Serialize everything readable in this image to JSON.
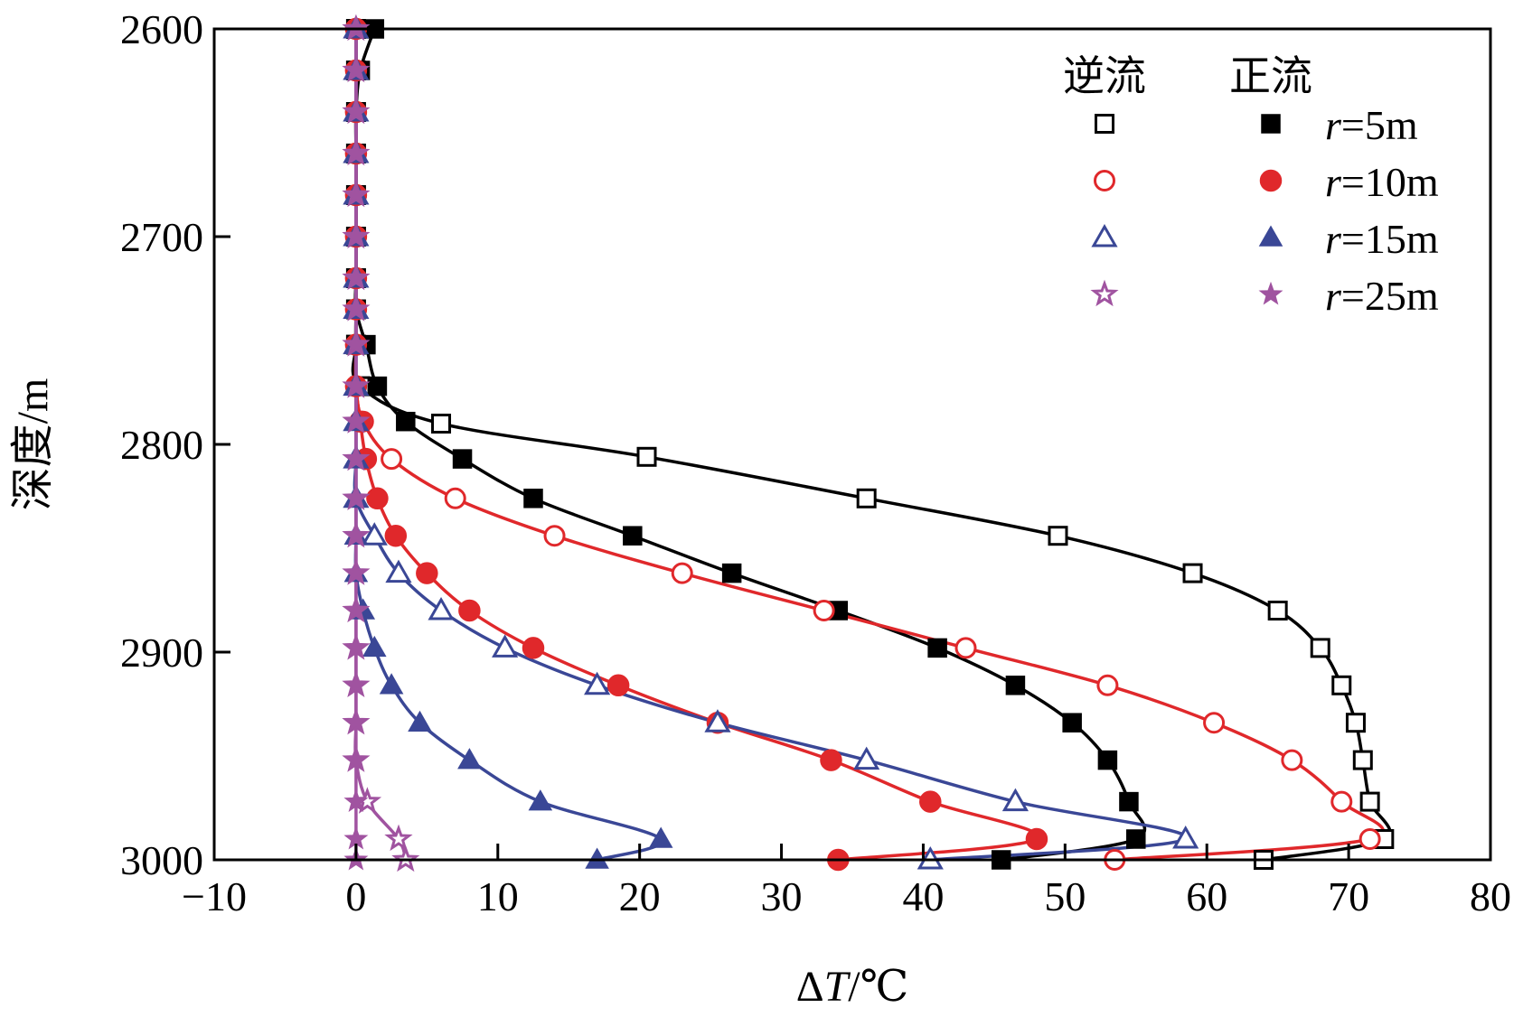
{
  "chart_data": {
    "type": "line",
    "title": "",
    "xlabel_prefix": "Δ",
    "xlabel_var": "T",
    "xlabel_unit": "/℃",
    "ylabel": "深度/m",
    "xlim": [
      -10,
      80
    ],
    "ylim": [
      2600,
      3000
    ],
    "xticks": [
      -10,
      0,
      10,
      20,
      30,
      40,
      50,
      60,
      70,
      80
    ],
    "xtick_labels": [
      "−10",
      "0",
      "10",
      "20",
      "30",
      "40",
      "50",
      "60",
      "70",
      "80"
    ],
    "yticks": [
      2600,
      2700,
      2800,
      2900,
      3000
    ],
    "ytick_labels": [
      "2600",
      "2700",
      "2800",
      "2900",
      "3000"
    ],
    "grid": false,
    "legend": {
      "position": "top-right",
      "header_reverse": "逆流",
      "header_forward": "正流",
      "var": "r",
      "labels": [
        "=5m",
        "=10m",
        "=15m",
        "=25m"
      ]
    },
    "series": [
      {
        "name": "逆流 r=5m",
        "flow": "reverse",
        "color": "#000000",
        "marker": "square",
        "filled": false,
        "points": [
          [
            0,
            2600
          ],
          [
            0,
            2620
          ],
          [
            0,
            2640
          ],
          [
            0,
            2660
          ],
          [
            0,
            2680
          ],
          [
            0,
            2700
          ],
          [
            0,
            2720
          ],
          [
            0,
            2735
          ],
          [
            0,
            2752
          ],
          [
            0.3,
            2772
          ],
          [
            6,
            2790
          ],
          [
            20.5,
            2806
          ],
          [
            36,
            2826
          ],
          [
            49.5,
            2844
          ],
          [
            59,
            2862
          ],
          [
            65,
            2880
          ],
          [
            68,
            2898
          ],
          [
            69.5,
            2916
          ],
          [
            70.5,
            2934
          ],
          [
            71,
            2952
          ],
          [
            71.5,
            2972
          ],
          [
            72.5,
            2990
          ],
          [
            64,
            3000
          ]
        ]
      },
      {
        "name": "正流 r=5m",
        "flow": "forward",
        "color": "#000000",
        "marker": "square",
        "filled": true,
        "points": [
          [
            1.3,
            2600
          ],
          [
            0.3,
            2620
          ],
          [
            0,
            2640
          ],
          [
            0,
            2660
          ],
          [
            0,
            2680
          ],
          [
            0,
            2700
          ],
          [
            0,
            2720
          ],
          [
            0,
            2735
          ],
          [
            0.7,
            2752
          ],
          [
            1.5,
            2772
          ],
          [
            3.5,
            2789
          ],
          [
            7.5,
            2807
          ],
          [
            12.5,
            2826
          ],
          [
            19.5,
            2844
          ],
          [
            26.5,
            2862
          ],
          [
            34,
            2880
          ],
          [
            41,
            2898
          ],
          [
            46.5,
            2916
          ],
          [
            50.5,
            2934
          ],
          [
            53,
            2952
          ],
          [
            54.5,
            2972
          ],
          [
            55,
            2990
          ],
          [
            45.5,
            3000
          ]
        ]
      },
      {
        "name": "逆流 r=10m",
        "flow": "reverse",
        "color": "#e0282b",
        "marker": "circle",
        "filled": false,
        "points": [
          [
            0,
            2600
          ],
          [
            0,
            2620
          ],
          [
            0,
            2640
          ],
          [
            0,
            2660
          ],
          [
            0,
            2680
          ],
          [
            0,
            2700
          ],
          [
            0,
            2720
          ],
          [
            0,
            2735
          ],
          [
            0,
            2752
          ],
          [
            0,
            2772
          ],
          [
            0.5,
            2789
          ],
          [
            2.5,
            2807
          ],
          [
            7,
            2826
          ],
          [
            14,
            2844
          ],
          [
            23,
            2862
          ],
          [
            33,
            2880
          ],
          [
            43,
            2898
          ],
          [
            53,
            2916
          ],
          [
            60.5,
            2934
          ],
          [
            66,
            2952
          ],
          [
            69.5,
            2972
          ],
          [
            71.5,
            2990
          ],
          [
            53.5,
            3000
          ]
        ]
      },
      {
        "name": "正流 r=10m",
        "flow": "forward",
        "color": "#e0282b",
        "marker": "circle",
        "filled": true,
        "points": [
          [
            0,
            2600
          ],
          [
            0,
            2620
          ],
          [
            0,
            2640
          ],
          [
            0,
            2660
          ],
          [
            0,
            2680
          ],
          [
            0,
            2700
          ],
          [
            0,
            2720
          ],
          [
            0,
            2735
          ],
          [
            0,
            2752
          ],
          [
            0,
            2772
          ],
          [
            0.3,
            2789
          ],
          [
            0.7,
            2807
          ],
          [
            1.5,
            2826
          ],
          [
            2.8,
            2844
          ],
          [
            5,
            2862
          ],
          [
            8,
            2880
          ],
          [
            12.5,
            2898
          ],
          [
            18.5,
            2916
          ],
          [
            25.5,
            2934
          ],
          [
            33.5,
            2952
          ],
          [
            40.5,
            2972
          ],
          [
            48,
            2990
          ],
          [
            34,
            3000
          ]
        ]
      },
      {
        "name": "逆流 r=15m",
        "flow": "reverse",
        "color": "#3a4796",
        "marker": "triangle",
        "filled": false,
        "points": [
          [
            0,
            2600
          ],
          [
            0,
            2620
          ],
          [
            0,
            2640
          ],
          [
            0,
            2660
          ],
          [
            0,
            2680
          ],
          [
            0,
            2700
          ],
          [
            0,
            2720
          ],
          [
            0,
            2735
          ],
          [
            0,
            2752
          ],
          [
            0,
            2772
          ],
          [
            0,
            2789
          ],
          [
            0,
            2807
          ],
          [
            0,
            2826
          ],
          [
            1.3,
            2844
          ],
          [
            3,
            2862
          ],
          [
            6,
            2880
          ],
          [
            10.5,
            2898
          ],
          [
            17,
            2916
          ],
          [
            25.5,
            2934
          ],
          [
            36,
            2952
          ],
          [
            46.5,
            2972
          ],
          [
            58.5,
            2990
          ],
          [
            40.5,
            3000
          ]
        ]
      },
      {
        "name": "正流 r=15m",
        "flow": "forward",
        "color": "#3a4796",
        "marker": "triangle",
        "filled": true,
        "points": [
          [
            0,
            2600
          ],
          [
            0,
            2620
          ],
          [
            0,
            2640
          ],
          [
            0,
            2660
          ],
          [
            0,
            2680
          ],
          [
            0,
            2700
          ],
          [
            0,
            2720
          ],
          [
            0,
            2735
          ],
          [
            0,
            2752
          ],
          [
            0,
            2772
          ],
          [
            0,
            2789
          ],
          [
            0,
            2807
          ],
          [
            0,
            2826
          ],
          [
            0,
            2844
          ],
          [
            0,
            2862
          ],
          [
            0.5,
            2880
          ],
          [
            1.3,
            2898
          ],
          [
            2.5,
            2916
          ],
          [
            4.5,
            2934
          ],
          [
            8,
            2952
          ],
          [
            13,
            2972
          ],
          [
            21.5,
            2990
          ],
          [
            17,
            3000
          ]
        ]
      },
      {
        "name": "逆流 r=25m",
        "flow": "reverse",
        "color": "#a053a0",
        "marker": "star",
        "filled": false,
        "points": [
          [
            0,
            2600
          ],
          [
            0,
            2620
          ],
          [
            0,
            2640
          ],
          [
            0,
            2660
          ],
          [
            0,
            2680
          ],
          [
            0,
            2700
          ],
          [
            0,
            2720
          ],
          [
            0,
            2735
          ],
          [
            0,
            2752
          ],
          [
            0,
            2772
          ],
          [
            0,
            2789
          ],
          [
            0,
            2807
          ],
          [
            0,
            2826
          ],
          [
            0,
            2844
          ],
          [
            0,
            2862
          ],
          [
            0,
            2880
          ],
          [
            0,
            2898
          ],
          [
            0,
            2916
          ],
          [
            0,
            2934
          ],
          [
            0,
            2952
          ],
          [
            0.8,
            2972
          ],
          [
            3,
            2990
          ],
          [
            3.5,
            3000
          ]
        ]
      },
      {
        "name": "正流 r=25m",
        "flow": "forward",
        "color": "#a053a0",
        "marker": "star",
        "filled": true,
        "points": [
          [
            0,
            2600
          ],
          [
            0,
            2620
          ],
          [
            0,
            2640
          ],
          [
            0,
            2660
          ],
          [
            0,
            2680
          ],
          [
            0,
            2700
          ],
          [
            0,
            2720
          ],
          [
            0,
            2735
          ],
          [
            0,
            2752
          ],
          [
            0,
            2772
          ],
          [
            0,
            2789
          ],
          [
            0,
            2807
          ],
          [
            0,
            2826
          ],
          [
            0,
            2844
          ],
          [
            0,
            2862
          ],
          [
            0,
            2880
          ],
          [
            0,
            2898
          ],
          [
            0,
            2916
          ],
          [
            0,
            2934
          ],
          [
            0,
            2952
          ],
          [
            0,
            2972
          ],
          [
            0,
            2990
          ],
          [
            0,
            3000
          ]
        ]
      }
    ]
  }
}
